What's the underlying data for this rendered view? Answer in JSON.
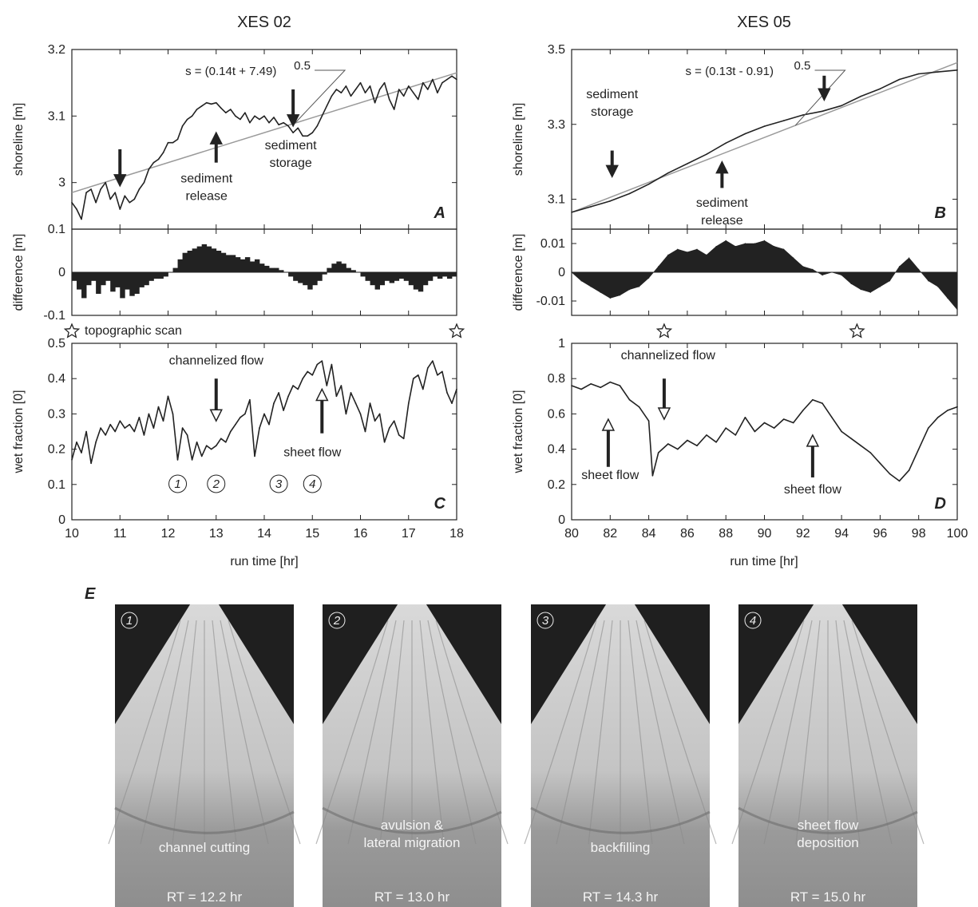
{
  "colors": {
    "ink": "#222222",
    "fit_line": "#9a9a9a",
    "photo_dark": "#1f1f1f",
    "photo_light": "#bcbcbc"
  },
  "chart_data": [
    {
      "id": "A",
      "type": "line",
      "column_title": "XES 02",
      "panel_label": "A",
      "ylabel": "shoreline [m]",
      "xlabel": "",
      "xlim": [
        10,
        18
      ],
      "ylim": [
        2.93,
        3.2
      ],
      "yticks": [
        3,
        3.1,
        3.2
      ],
      "ytick_labels": [
        "3",
        "3.1",
        "3.2"
      ],
      "series": [
        {
          "x": [
            10,
            10.1,
            10.2,
            10.3,
            10.4,
            10.5,
            10.6,
            10.7,
            10.8,
            10.9,
            11,
            11.1,
            11.2,
            11.3,
            11.4,
            11.5,
            11.6,
            11.7,
            11.8,
            11.9,
            12,
            12.1,
            12.2,
            12.3,
            12.4,
            12.5,
            12.6,
            12.7,
            12.8,
            12.9,
            13,
            13.1,
            13.2,
            13.3,
            13.4,
            13.5,
            13.6,
            13.7,
            13.8,
            13.9,
            14,
            14.1,
            14.2,
            14.3,
            14.4,
            14.5,
            14.6,
            14.7,
            14.8,
            14.9,
            15,
            15.1,
            15.2,
            15.3,
            15.4,
            15.5,
            15.6,
            15.7,
            15.8,
            15.9,
            16,
            16.1,
            16.2,
            16.3,
            16.4,
            16.5,
            16.6,
            16.7,
            16.8,
            16.9,
            17,
            17.1,
            17.2,
            17.3,
            17.4,
            17.5,
            17.6,
            17.7,
            17.8,
            17.9,
            18
          ],
          "y": [
            2.97,
            2.96,
            2.945,
            2.985,
            2.99,
            2.97,
            2.99,
            3.0,
            2.975,
            2.985,
            2.96,
            2.98,
            2.97,
            2.975,
            2.99,
            3.0,
            3.02,
            3.03,
            3.035,
            3.045,
            3.06,
            3.06,
            3.065,
            3.085,
            3.095,
            3.1,
            3.11,
            3.115,
            3.12,
            3.118,
            3.12,
            3.112,
            3.105,
            3.11,
            3.1,
            3.095,
            3.105,
            3.09,
            3.1,
            3.095,
            3.1,
            3.09,
            3.098,
            3.087,
            3.09,
            3.085,
            3.075,
            3.082,
            3.07,
            3.07,
            3.075,
            3.085,
            3.1,
            3.115,
            3.13,
            3.14,
            3.135,
            3.145,
            3.13,
            3.14,
            3.15,
            3.135,
            3.145,
            3.12,
            3.14,
            3.15,
            3.125,
            3.11,
            3.14,
            3.13,
            3.145,
            3.135,
            3.125,
            3.15,
            3.14,
            3.155,
            3.135,
            3.15,
            3.155,
            3.16,
            3.155
          ]
        }
      ],
      "fit": {
        "equation": "s = (0.14t + 7.49)",
        "exponent": "0.5",
        "x": [
          10,
          18
        ],
        "y": [
          2.985,
          3.165
        ]
      },
      "annotations": [
        {
          "text": [
            "sediment",
            "release"
          ],
          "x": 12.8,
          "y": 3.0,
          "arrow": "up",
          "arrow_x": 13.0,
          "arrow_y0": 3.03,
          "arrow_y1": 3.075
        },
        {
          "text": [
            "sediment",
            "storage"
          ],
          "x": 14.55,
          "y": 3.05,
          "arrow": "down",
          "arrow_x": 14.6,
          "arrow_y0": 3.14,
          "arrow_y1": 3.085
        },
        {
          "text": [],
          "arrow": "down",
          "arrow_x": 11.0,
          "arrow_y0": 3.05,
          "arrow_y1": 2.995
        }
      ]
    },
    {
      "id": "A-diff",
      "type": "bar",
      "ylabel": "difference [m]",
      "xlim": [
        10,
        18
      ],
      "ylim": [
        -0.1,
        0.1
      ],
      "yticks": [
        -0.1,
        0,
        0.1
      ],
      "ytick_labels": [
        "-0.1",
        "0",
        "0.1"
      ],
      "x": [
        10,
        10.1,
        10.2,
        10.3,
        10.4,
        10.5,
        10.6,
        10.7,
        10.8,
        10.9,
        11,
        11.1,
        11.2,
        11.3,
        11.4,
        11.5,
        11.6,
        11.7,
        11.8,
        11.9,
        12,
        12.1,
        12.2,
        12.3,
        12.4,
        12.5,
        12.6,
        12.7,
        12.8,
        12.9,
        13,
        13.1,
        13.2,
        13.3,
        13.4,
        13.5,
        13.6,
        13.7,
        13.8,
        13.9,
        14,
        14.1,
        14.2,
        14.3,
        14.4,
        14.5,
        14.6,
        14.7,
        14.8,
        14.9,
        15,
        15.1,
        15.2,
        15.3,
        15.4,
        15.5,
        15.6,
        15.7,
        15.8,
        15.9,
        16,
        16.1,
        16.2,
        16.3,
        16.4,
        16.5,
        16.6,
        16.7,
        16.8,
        16.9,
        17,
        17.1,
        17.2,
        17.3,
        17.4,
        17.5,
        17.6,
        17.7,
        17.8,
        17.9
      ],
      "values": [
        -0.02,
        -0.04,
        -0.06,
        -0.03,
        -0.02,
        -0.05,
        -0.03,
        -0.02,
        -0.045,
        -0.035,
        -0.06,
        -0.04,
        -0.055,
        -0.05,
        -0.035,
        -0.03,
        -0.02,
        -0.015,
        -0.015,
        -0.01,
        0.0,
        0.01,
        0.03,
        0.045,
        0.05,
        0.055,
        0.06,
        0.065,
        0.06,
        0.055,
        0.05,
        0.045,
        0.04,
        0.04,
        0.035,
        0.03,
        0.035,
        0.025,
        0.03,
        0.02,
        0.015,
        0.01,
        0.01,
        0.005,
        0.0,
        -0.01,
        -0.02,
        -0.025,
        -0.03,
        -0.04,
        -0.03,
        -0.02,
        -0.005,
        0.01,
        0.02,
        0.025,
        0.02,
        0.01,
        0.005,
        0.0,
        -0.01,
        -0.02,
        -0.03,
        -0.04,
        -0.03,
        -0.02,
        -0.025,
        -0.02,
        -0.015,
        -0.02,
        -0.03,
        -0.04,
        -0.045,
        -0.03,
        -0.02,
        -0.01,
        -0.015,
        -0.01,
        -0.015,
        -0.01
      ],
      "markers": [
        {
          "x": 10,
          "label": "topographic scan"
        },
        {
          "x": 18,
          "label": ""
        }
      ]
    },
    {
      "id": "C",
      "type": "line",
      "panel_label": "C",
      "ylabel": "wet fraction [0]",
      "xlabel": "run time [hr]",
      "xlim": [
        10,
        18
      ],
      "ylim": [
        0,
        0.5
      ],
      "xticks": [
        10,
        11,
        12,
        13,
        14,
        15,
        16,
        17,
        18
      ],
      "xtick_labels": [
        "10",
        "11",
        "12",
        "13",
        "14",
        "15",
        "16",
        "17",
        "18"
      ],
      "yticks": [
        0,
        0.1,
        0.2,
        0.3,
        0.4,
        0.5
      ],
      "ytick_labels": [
        "0",
        "0.1",
        "0.2",
        "0.3",
        "0.4",
        "0.5"
      ],
      "series": [
        {
          "x": [
            10,
            10.1,
            10.2,
            10.3,
            10.4,
            10.5,
            10.6,
            10.7,
            10.8,
            10.9,
            11,
            11.1,
            11.2,
            11.3,
            11.4,
            11.5,
            11.6,
            11.7,
            11.8,
            11.9,
            12,
            12.1,
            12.2,
            12.3,
            12.4,
            12.5,
            12.6,
            12.7,
            12.8,
            12.9,
            13,
            13.1,
            13.2,
            13.3,
            13.4,
            13.5,
            13.6,
            13.7,
            13.8,
            13.9,
            14,
            14.1,
            14.2,
            14.3,
            14.4,
            14.5,
            14.6,
            14.7,
            14.8,
            14.9,
            15,
            15.1,
            15.2,
            15.3,
            15.4,
            15.5,
            15.6,
            15.7,
            15.8,
            15.9,
            16,
            16.1,
            16.2,
            16.3,
            16.4,
            16.5,
            16.6,
            16.7,
            16.8,
            16.9,
            17,
            17.1,
            17.2,
            17.3,
            17.4,
            17.5,
            17.6,
            17.7,
            17.8,
            17.9,
            18
          ],
          "y": [
            0.17,
            0.22,
            0.19,
            0.25,
            0.16,
            0.22,
            0.26,
            0.24,
            0.27,
            0.25,
            0.28,
            0.26,
            0.27,
            0.25,
            0.29,
            0.24,
            0.3,
            0.26,
            0.32,
            0.28,
            0.35,
            0.3,
            0.17,
            0.26,
            0.24,
            0.17,
            0.22,
            0.18,
            0.21,
            0.2,
            0.21,
            0.23,
            0.22,
            0.25,
            0.27,
            0.29,
            0.3,
            0.34,
            0.18,
            0.26,
            0.3,
            0.27,
            0.33,
            0.36,
            0.31,
            0.35,
            0.38,
            0.37,
            0.4,
            0.42,
            0.41,
            0.44,
            0.45,
            0.38,
            0.44,
            0.35,
            0.38,
            0.3,
            0.36,
            0.33,
            0.3,
            0.25,
            0.33,
            0.28,
            0.3,
            0.22,
            0.26,
            0.28,
            0.24,
            0.23,
            0.33,
            0.4,
            0.41,
            0.37,
            0.43,
            0.45,
            0.41,
            0.42,
            0.36,
            0.33,
            0.37
          ]
        }
      ],
      "annotations": [
        {
          "text": [
            "channelized flow"
          ],
          "x": 13.0,
          "y": 0.44,
          "arrow": "down-open",
          "arrow_x": 13.0,
          "arrow_y0": 0.4,
          "arrow_y1": 0.28
        },
        {
          "text": [
            "sheet flow"
          ],
          "x": 15.0,
          "y": 0.18,
          "arrow": "up-open",
          "arrow_x": 15.2,
          "arrow_y0": 0.245,
          "arrow_y1": 0.37
        }
      ],
      "circled_labels": [
        {
          "x": 12.2,
          "text": "1"
        },
        {
          "x": 13.0,
          "text": "2"
        },
        {
          "x": 14.3,
          "text": "3"
        },
        {
          "x": 15.0,
          "text": "4"
        }
      ]
    },
    {
      "id": "B",
      "type": "line",
      "column_title": "XES 05",
      "panel_label": "B",
      "ylabel": "shoreline [m]",
      "xlabel": "",
      "xlim": [
        80,
        100
      ],
      "ylim": [
        3.02,
        3.5
      ],
      "yticks": [
        3.1,
        3.3,
        3.5
      ],
      "ytick_labels": [
        "3.1",
        "3.3",
        "3.5"
      ],
      "series": [
        {
          "x": [
            80,
            81,
            82,
            83,
            84,
            85,
            86,
            87,
            88,
            89,
            90,
            91,
            92,
            93,
            94,
            95,
            96,
            97,
            98,
            99,
            100
          ],
          "y": [
            3.065,
            3.08,
            3.095,
            3.115,
            3.14,
            3.17,
            3.195,
            3.22,
            3.25,
            3.275,
            3.295,
            3.31,
            3.325,
            3.335,
            3.35,
            3.375,
            3.395,
            3.42,
            3.435,
            3.44,
            3.445
          ]
        }
      ],
      "fit": {
        "equation": "s = (0.13t - 0.91)",
        "exponent": "0.5",
        "x": [
          80,
          100
        ],
        "y": [
          3.065,
          3.465
        ]
      },
      "annotations": [
        {
          "text": [
            "sediment",
            "storage"
          ],
          "x": 82.1,
          "y": 3.37,
          "arrow": "down",
          "arrow_x": 82.1,
          "arrow_y0": 3.23,
          "arrow_y1": 3.16
        },
        {
          "text": [
            "sediment",
            "release"
          ],
          "x": 87.8,
          "y": 3.08,
          "arrow": "up",
          "arrow_x": 87.8,
          "arrow_y0": 3.13,
          "arrow_y1": 3.2
        },
        {
          "text": [],
          "arrow": "down",
          "arrow_x": 93.1,
          "arrow_y0": 3.43,
          "arrow_y1": 3.365
        }
      ]
    },
    {
      "id": "B-diff",
      "type": "area",
      "ylabel": "difference [m]",
      "xlim": [
        80,
        100
      ],
      "ylim": [
        -0.015,
        0.015
      ],
      "yticks": [
        -0.01,
        0,
        0.01
      ],
      "ytick_labels": [
        "-0.01",
        "0",
        "0.01"
      ],
      "x": [
        80,
        80.5,
        81,
        81.5,
        82,
        82.5,
        83,
        83.5,
        84,
        84.5,
        85,
        85.5,
        86,
        86.5,
        87,
        87.5,
        88,
        88.5,
        89,
        89.5,
        90,
        90.5,
        91,
        91.5,
        92,
        92.5,
        93,
        93.5,
        94,
        94.5,
        95,
        95.5,
        96,
        96.5,
        97,
        97.5,
        98,
        98.5,
        99,
        99.5,
        100
      ],
      "values": [
        0,
        -0.003,
        -0.005,
        -0.007,
        -0.009,
        -0.008,
        -0.006,
        -0.005,
        -0.002,
        0.002,
        0.006,
        0.008,
        0.007,
        0.008,
        0.006,
        0.009,
        0.011,
        0.009,
        0.01,
        0.01,
        0.011,
        0.009,
        0.008,
        0.005,
        0.002,
        0.001,
        -0.001,
        0.0,
        -0.001,
        -0.004,
        -0.006,
        -0.007,
        -0.005,
        -0.003,
        0.002,
        0.005,
        0.001,
        -0.003,
        -0.005,
        -0.009,
        -0.013
      ],
      "markers": [
        {
          "x": 84.8,
          "label": ""
        },
        {
          "x": 94.8,
          "label": ""
        }
      ]
    },
    {
      "id": "D",
      "type": "line",
      "panel_label": "D",
      "ylabel": "wet fraction [0]",
      "xlabel": "run time [hr]",
      "xlim": [
        80,
        100
      ],
      "ylim": [
        0,
        1
      ],
      "xticks": [
        80,
        82,
        84,
        86,
        88,
        90,
        92,
        94,
        96,
        98,
        100
      ],
      "xtick_labels": [
        "80",
        "82",
        "84",
        "86",
        "88",
        "90",
        "92",
        "94",
        "96",
        "98",
        "100"
      ],
      "yticks": [
        0,
        0.2,
        0.4,
        0.6,
        0.8,
        1
      ],
      "ytick_labels": [
        "0",
        "0.2",
        "0.4",
        "0.6",
        "0.8",
        "1"
      ],
      "series": [
        {
          "x": [
            80,
            80.5,
            81,
            81.5,
            82,
            82.5,
            83,
            83.5,
            84,
            84.2,
            84.5,
            85,
            85.5,
            86,
            86.5,
            87,
            87.5,
            88,
            88.5,
            89,
            89.5,
            90,
            90.5,
            91,
            91.5,
            92,
            92.5,
            93,
            93.5,
            94,
            94.5,
            95,
            95.5,
            96,
            96.5,
            97,
            97.5,
            98,
            98.5,
            99,
            99.5,
            100
          ],
          "y": [
            0.76,
            0.74,
            0.77,
            0.75,
            0.78,
            0.76,
            0.68,
            0.64,
            0.56,
            0.25,
            0.38,
            0.43,
            0.4,
            0.45,
            0.42,
            0.48,
            0.44,
            0.52,
            0.48,
            0.58,
            0.5,
            0.55,
            0.52,
            0.57,
            0.55,
            0.62,
            0.68,
            0.66,
            0.58,
            0.5,
            0.46,
            0.42,
            0.38,
            0.32,
            0.26,
            0.22,
            0.28,
            0.4,
            0.52,
            0.58,
            0.62,
            0.64
          ]
        }
      ],
      "annotations": [
        {
          "text": [
            "channelized flow"
          ],
          "x": 85.0,
          "y": 0.91,
          "arrow": "down-open",
          "arrow_x": 84.8,
          "arrow_y0": 0.8,
          "arrow_y1": 0.57
        },
        {
          "text": [
            "sheet flow"
          ],
          "x": 82.0,
          "y": 0.23,
          "arrow": "up-open",
          "arrow_x": 81.9,
          "arrow_y0": 0.3,
          "arrow_y1": 0.57
        },
        {
          "text": [
            "sheet flow"
          ],
          "x": 92.5,
          "y": 0.15,
          "arrow": "up-open",
          "arrow_x": 92.5,
          "arrow_y0": 0.24,
          "arrow_y1": 0.48
        }
      ]
    }
  ],
  "photo_panel": {
    "label": "E",
    "photos": [
      {
        "num": "1",
        "caption": [
          "channel cutting"
        ],
        "rt": "RT = 12.2 hr"
      },
      {
        "num": "2",
        "caption": [
          "avulsion &",
          "lateral migration"
        ],
        "rt": "RT = 13.0 hr"
      },
      {
        "num": "3",
        "caption": [
          "backfilling"
        ],
        "rt": "RT = 14.3 hr"
      },
      {
        "num": "4",
        "caption": [
          "sheet flow",
          "deposition"
        ],
        "rt": "RT = 15.0 hr"
      }
    ]
  }
}
